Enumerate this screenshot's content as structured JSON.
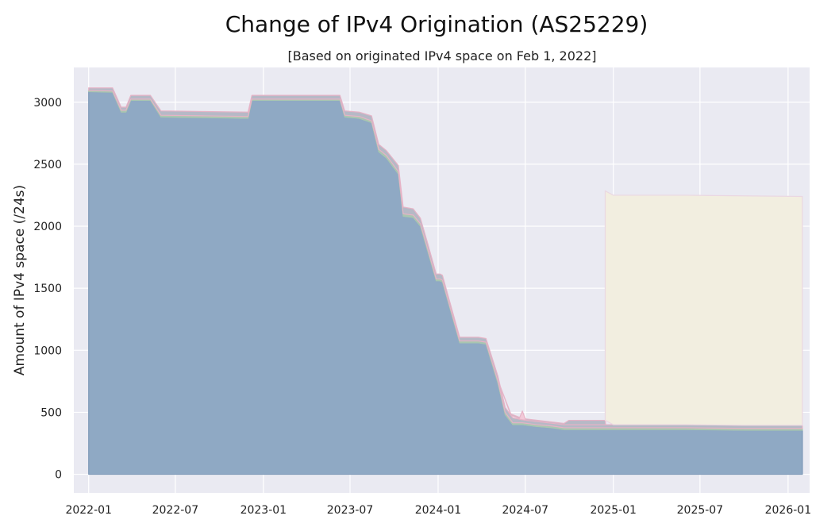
{
  "chart_data": {
    "type": "area",
    "title": "Change of IPv4 Origination (AS25229)",
    "subtitle": "[Based on originated IPv4 space on Feb 1, 2022]",
    "xlabel": "",
    "ylabel": "Amount of IPv4 space (/24s)",
    "x_ticks": [
      "2022-01",
      "2022-07",
      "2023-01",
      "2023-07",
      "2024-01",
      "2024-07",
      "2025-01",
      "2025-07",
      "2026-01"
    ],
    "y_ticks": [
      "0",
      "500",
      "1000",
      "1500",
      "2000",
      "2500",
      "3000"
    ],
    "xlim": [
      "2021-12-01",
      "2026-02-15"
    ],
    "ylim": [
      -150,
      3280
    ],
    "grid": true,
    "legend": "none",
    "colors": {
      "background": "#eaeaf2",
      "grid": "#ffffff",
      "base_series": "#8fa9c4",
      "base_series_edge": "#7e99b8",
      "thin_layer_green": "#a9c6b1",
      "thin_layer_gray": "#b6b9c6",
      "top_edge": "#e6b3c6",
      "new_block": "#f2eee0",
      "new_block_edge": "#ead7e2"
    },
    "series": [
      {
        "x": [
          "2022-01-01",
          "2022-02-20",
          "2022-03-10",
          "2022-03-20",
          "2022-03-30",
          "2022-05-10",
          "2022-06-01",
          "2022-09-01",
          "2022-11-30",
          "2022-12-08",
          "2023-06-10",
          "2023-06-20",
          "2023-07-20",
          "2023-08-15",
          "2023-08-30",
          "2023-09-15",
          "2023-10-10",
          "2023-10-20",
          "2023-11-10",
          "2023-11-25",
          "2023-12-10",
          "2023-12-28",
          "2024-01-05",
          "2024-01-10",
          "2024-02-15",
          "2024-03-10",
          "2024-03-25",
          "2024-04-10",
          "2024-05-05",
          "2024-05-20",
          "2024-06-05",
          "2024-06-25",
          "2024-07-25",
          "2024-08-25",
          "2024-09-20",
          "2024-12-15",
          "2025-06-01",
          "2025-10-01",
          "2026-01-31"
        ],
        "values": [
          3085,
          3080,
          2920,
          2920,
          3015,
          3015,
          2880,
          2875,
          2870,
          3015,
          3015,
          2880,
          2870,
          2835,
          2600,
          2550,
          2420,
          2080,
          2070,
          2000,
          1800,
          1560,
          1560,
          1550,
          1060,
          1060,
          1060,
          1050,
          730,
          480,
          400,
          400,
          385,
          375,
          360,
          360,
          360,
          355,
          355
        ]
      },
      {
        "x": [
          "2022-01-01",
          "2022-02-20",
          "2022-03-10",
          "2022-03-20",
          "2022-03-30",
          "2022-05-10",
          "2022-06-01",
          "2022-09-01",
          "2022-11-30",
          "2022-12-08",
          "2023-06-10",
          "2023-06-20",
          "2023-07-20",
          "2023-08-15",
          "2023-08-30",
          "2023-09-15",
          "2023-10-10",
          "2023-10-20",
          "2023-11-10",
          "2023-11-25",
          "2023-12-10",
          "2023-12-28",
          "2024-01-05",
          "2024-01-10",
          "2024-02-15",
          "2024-03-10",
          "2024-03-25",
          "2024-04-10",
          "2024-05-05",
          "2024-05-20",
          "2024-06-05",
          "2024-06-25",
          "2024-07-25",
          "2024-08-25",
          "2024-09-20",
          "2024-12-15",
          "2025-06-01",
          "2025-10-01",
          "2026-01-31"
        ],
        "values": [
          10,
          10,
          15,
          15,
          10,
          10,
          15,
          15,
          15,
          10,
          10,
          15,
          15,
          15,
          20,
          20,
          20,
          20,
          20,
          20,
          20,
          15,
          15,
          15,
          15,
          15,
          15,
          15,
          20,
          20,
          15,
          15,
          15,
          15,
          15,
          15,
          15,
          15,
          15
        ]
      },
      {
        "x": [
          "2022-01-01",
          "2022-02-20",
          "2022-03-10",
          "2022-03-20",
          "2022-03-30",
          "2022-05-10",
          "2022-06-01",
          "2022-09-01",
          "2022-11-30",
          "2022-12-08",
          "2023-06-10",
          "2023-06-20",
          "2023-07-20",
          "2023-08-15",
          "2023-08-30",
          "2023-09-15",
          "2023-10-10",
          "2023-10-20",
          "2023-11-10",
          "2023-11-25",
          "2023-12-10",
          "2023-12-28",
          "2024-01-05",
          "2024-01-10",
          "2024-02-15",
          "2024-03-10",
          "2024-03-25",
          "2024-04-10",
          "2024-05-05",
          "2024-05-20",
          "2024-06-05",
          "2024-06-25",
          "2024-07-25",
          "2024-08-25",
          "2024-09-20",
          "2024-12-15",
          "2025-06-01",
          "2025-10-01",
          "2026-01-31"
        ],
        "values": [
          20,
          25,
          25,
          25,
          30,
          30,
          35,
          35,
          35,
          30,
          30,
          35,
          35,
          40,
          40,
          40,
          50,
          55,
          50,
          45,
          45,
          40,
          40,
          40,
          30,
          30,
          30,
          30,
          40,
          40,
          40,
          25,
          25,
          25,
          25,
          25,
          25,
          25,
          25
        ]
      },
      {
        "x": [
          "2024-05-10",
          "2024-06-01",
          "2024-06-25",
          "2024-07-01",
          "2024-09-20",
          "2024-09-30",
          "2024-12-15",
          "2024-12-16"
        ],
        "values": [
          0,
          10,
          10,
          10,
          10,
          35,
          35,
          0
        ]
      },
      {
        "x": [
          "2024-06-18",
          "2024-06-25",
          "2024-07-02"
        ],
        "values": [
          0,
          70,
          0
        ]
      },
      {
        "x": [
          "2024-12-15",
          "2025-01-01",
          "2025-06-01",
          "2025-10-01",
          "2026-01-31"
        ],
        "values": [
          1850,
          1850,
          1850,
          1850,
          1845
        ]
      }
    ]
  }
}
